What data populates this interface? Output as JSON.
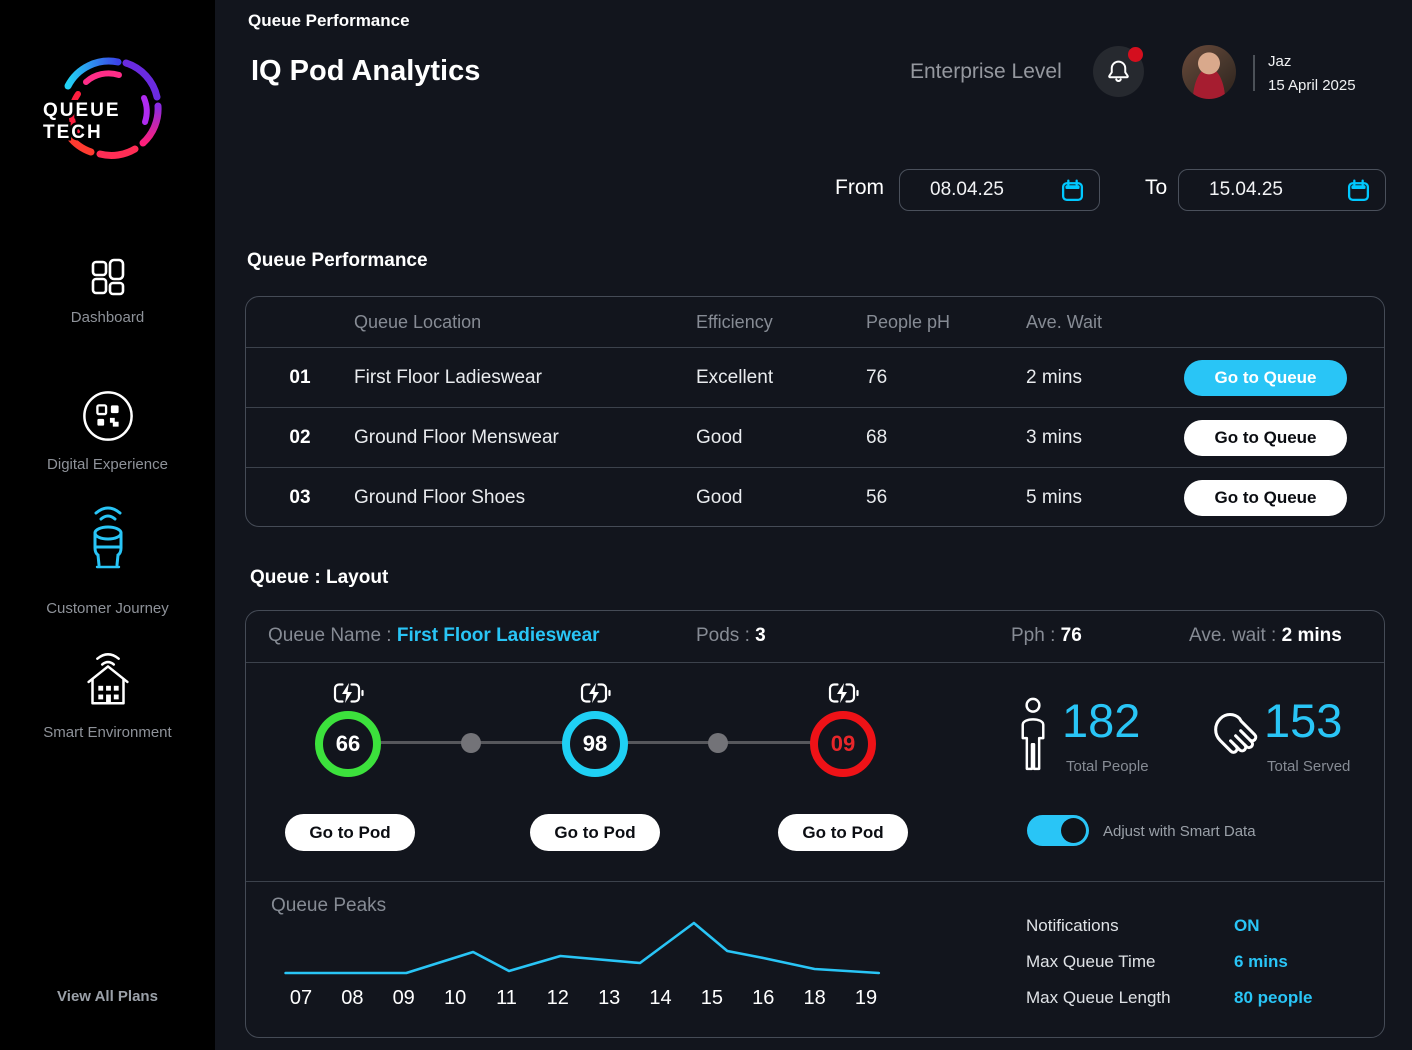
{
  "sidebar": {
    "logo": {
      "line1": "QUEUE",
      "line2": "TECH"
    },
    "items": [
      {
        "label": "Dashboard",
        "icon": "dashboard-icon"
      },
      {
        "label": "Digital Experience",
        "icon": "digital-experience-icon"
      },
      {
        "label": "Customer Journey",
        "icon": "customer-journey-icon",
        "active": true
      },
      {
        "label": "Smart Environment",
        "icon": "smart-environment-icon"
      }
    ],
    "footer_link": "View All Plans"
  },
  "header": {
    "breadcrumb": "Queue Performance",
    "title": "IQ Pod Analytics",
    "plan_level": "Enterprise Level",
    "user": {
      "name": "Jaz",
      "date": "15 April 2025"
    }
  },
  "date_range": {
    "from_label": "From",
    "from_value": "08.04.25",
    "to_label": "To",
    "to_value": "15.04.25"
  },
  "queue_table": {
    "section_title": "Queue Performance",
    "columns": [
      "Queue Location",
      "Efficiency",
      "People pH",
      "Ave. Wait"
    ],
    "rows": [
      {
        "num": "01",
        "location": "First Floor Ladieswear",
        "efficiency": "Excellent",
        "people_ph": "76",
        "ave_wait": "2 mins",
        "action": "Go to Queue",
        "highlighted": true
      },
      {
        "num": "02",
        "location": "Ground Floor Menswear",
        "efficiency": "Good",
        "people_ph": "68",
        "ave_wait": "3 mins",
        "action": "Go to Queue",
        "highlighted": false
      },
      {
        "num": "03",
        "location": "Ground Floor Shoes",
        "efficiency": "Good",
        "people_ph": "56",
        "ave_wait": "5 mins",
        "action": "Go to Queue",
        "highlighted": false
      }
    ]
  },
  "layout": {
    "section_title": "Queue : Layout",
    "queue_name_label": "Queue Name :",
    "queue_name": "First Floor Ladieswear",
    "pods_label": "Pods :",
    "pods_value": "3",
    "pph_label": "Pph :",
    "pph_value": "76",
    "ave_wait_label": "Ave. wait :",
    "ave_wait_value": "2 mins",
    "pods": [
      {
        "value": "66",
        "ring_color": "#3ce13c",
        "number_color": "#ffffff",
        "action": "Go to Pod"
      },
      {
        "value": "98",
        "ring_color": "#1fd0f4",
        "number_color": "#ffffff",
        "action": "Go to Pod"
      },
      {
        "value": "09",
        "ring_color": "#ee1217",
        "number_color": "#e8262a",
        "action": "Go to Pod"
      }
    ],
    "stats": [
      {
        "value": "182",
        "label": "Total People",
        "icon": "person-icon"
      },
      {
        "value": "153",
        "label": "Total Served",
        "icon": "hand-icon"
      }
    ],
    "toggle_label": "Adjust with Smart Data",
    "toggle_on": true
  },
  "chart_data": {
    "type": "line",
    "title": "Queue Peaks",
    "categories": [
      "07",
      "08",
      "09",
      "10",
      "11",
      "12",
      "13",
      "14",
      "15",
      "16",
      "18",
      "19"
    ],
    "x_unit": "hour of day",
    "line_color": "#29c5f6",
    "grid": false,
    "legend": "none",
    "ylim": [
      0,
      70
    ],
    "points": [
      [
        -0.3,
        10
      ],
      [
        2.05,
        10
      ],
      [
        3.35,
        31
      ],
      [
        4.05,
        12
      ],
      [
        5.05,
        27
      ],
      [
        6.6,
        20
      ],
      [
        7.65,
        60
      ],
      [
        8.3,
        32
      ],
      [
        9.0,
        25
      ],
      [
        10.0,
        14
      ],
      [
        11.25,
        10
      ]
    ]
  },
  "settings": {
    "rows": [
      {
        "label": "Notifications",
        "value": "ON"
      },
      {
        "label": "Max Queue Time",
        "value": "6 mins"
      },
      {
        "label": "Max Queue Length",
        "value": "80 people"
      }
    ]
  },
  "colors": {
    "accent": "#29c5f6",
    "green": "#3ce13c",
    "red": "#ee1217",
    "page_bg": "#12151d",
    "sidebar_bg": "#000000",
    "border": "#454b56"
  }
}
